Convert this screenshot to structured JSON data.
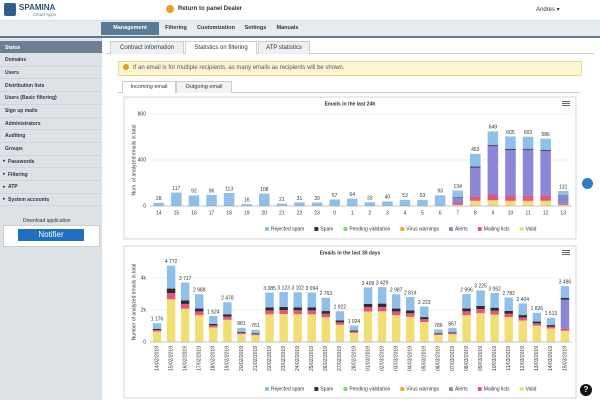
{
  "ui": {
    "logo": "SPAMINA",
    "logo_sub": "Cloud Apps",
    "return_link": "Return to panel Dealer",
    "user": "Andres ▾",
    "nav": [
      "Management",
      "Filtering",
      "Customization",
      "Settings",
      "Manuals"
    ],
    "sidebar": [
      "Status",
      "Domains",
      "Users",
      "Distribution lists",
      "Users (Basic filtering)",
      "Sign up mails",
      "Administrators",
      "Auditing",
      "Groups",
      "Passwords",
      "Filtering",
      "ATP",
      "System accounts"
    ],
    "download": "Download application",
    "notifier": "Notifier",
    "subtabs": [
      "Contract information",
      "Statistics on filtering",
      "ATP statistics"
    ],
    "notice": "If an email is for multiple recipients, as many emails as recipients will be shown.",
    "mailtabs": [
      "Incoming email",
      "Outgoing email"
    ]
  },
  "chart_data": [
    {
      "type": "bar",
      "stacked": true,
      "title": "Emails in the last 24h",
      "y_label": "Num. of analyzed emails in total",
      "categories": [
        "14",
        "15",
        "16",
        "17",
        "18",
        "19",
        "20",
        "21",
        "22",
        "23",
        "0",
        "1",
        "2",
        "3",
        "4",
        "5",
        "6",
        "7",
        "8",
        "9",
        "10",
        "11",
        "12",
        "13"
      ],
      "ylim": [
        0,
        800
      ],
      "yticks": [
        0,
        400,
        800
      ],
      "grid": true,
      "totals": [
        28,
        117,
        92,
        96,
        113,
        16,
        108,
        21,
        31,
        30,
        57,
        64,
        33,
        40,
        53,
        53,
        93,
        134,
        453,
        649,
        605,
        603,
        586,
        131
      ],
      "series": [
        {
          "name": "Rejected spam",
          "color": "#8fc0ea",
          "values": [
            28,
            117,
            92,
            96,
            113,
            16,
            108,
            21,
            31,
            30,
            57,
            64,
            33,
            40,
            53,
            53,
            93,
            60,
            110,
            120,
            110,
            105,
            100,
            40
          ]
        },
        {
          "name": "Spam",
          "color": "#2b2b2b",
          "values": [
            0,
            0,
            0,
            0,
            0,
            0,
            0,
            0,
            0,
            0,
            0,
            0,
            0,
            0,
            0,
            0,
            0,
            4,
            8,
            9,
            8,
            8,
            8,
            3
          ]
        },
        {
          "name": "Pending validation",
          "color": "#7fd47f",
          "values": [
            0,
            0,
            0,
            0,
            0,
            0,
            0,
            0,
            0,
            0,
            0,
            0,
            0,
            0,
            0,
            0,
            0,
            0,
            0,
            0,
            0,
            0,
            0,
            0
          ]
        },
        {
          "name": "Virus warnings",
          "color": "#e8ae34",
          "values": [
            0,
            0,
            0,
            0,
            0,
            0,
            0,
            0,
            0,
            0,
            0,
            0,
            0,
            0,
            0,
            0,
            0,
            0,
            0,
            0,
            0,
            0,
            0,
            0
          ]
        },
        {
          "name": "Alerts",
          "color": "#8b86d8",
          "values": [
            0,
            0,
            0,
            0,
            0,
            0,
            0,
            0,
            0,
            0,
            0,
            0,
            0,
            0,
            0,
            0,
            0,
            40,
            250,
            420,
            395,
            400,
            385,
            68
          ]
        },
        {
          "name": "Mailing lists",
          "color": "#e2577d",
          "values": [
            0,
            0,
            0,
            0,
            0,
            0,
            0,
            0,
            0,
            0,
            0,
            0,
            0,
            0,
            0,
            0,
            0,
            20,
            40,
            50,
            47,
            45,
            48,
            10
          ]
        },
        {
          "name": "Valid",
          "color": "#f2df74",
          "values": [
            0,
            0,
            0,
            0,
            0,
            0,
            0,
            0,
            0,
            0,
            0,
            0,
            0,
            0,
            0,
            0,
            0,
            10,
            45,
            50,
            45,
            45,
            45,
            10
          ]
        }
      ]
    },
    {
      "type": "bar",
      "stacked": true,
      "title": "Emails in the last 30 days",
      "y_label": "Number of analyzed emails in total",
      "categories": [
        "14/02/2019",
        "15/02/2019",
        "16/02/2019",
        "17/02/2019",
        "18/02/2019",
        "19/02/2019",
        "20/02/2019",
        "21/02/2019",
        "22/02/2019",
        "23/02/2019",
        "24/02/2019",
        "25/02/2019",
        "26/02/2019",
        "27/02/2019",
        "28/02/2019",
        "01/03/2019",
        "02/03/2019",
        "03/03/2019",
        "04/03/2019",
        "05/03/2019",
        "06/03/2019",
        "07/03/2019",
        "08/03/2019",
        "09/03/2019",
        "10/03/2019",
        "11/03/2019",
        "12/03/2019",
        "13/03/2019",
        "14/03/2019",
        "15/03/2019"
      ],
      "ylim": [
        0,
        5000
      ],
      "yticks": [
        0,
        {
          "value": 2000,
          "label": "2k"
        },
        {
          "value": 4000,
          "label": "4k"
        }
      ],
      "grid": true,
      "totals": [
        1176,
        4772,
        3717,
        2988,
        1624,
        2478,
        881,
        761,
        3085,
        3123,
        3102,
        3094,
        2763,
        1922,
        1024,
        3409,
        3429,
        2987,
        2814,
        2223,
        786,
        867,
        2996,
        3225,
        3062,
        2782,
        2404,
        1826,
        1513,
        3496
      ],
      "total_labels": [
        "1 176",
        "4 772",
        "3 717",
        "2 988",
        "1 624",
        "2 478",
        "881",
        "761",
        "3 085",
        "3 123",
        "3 102",
        "3 094",
        "2 763",
        "1 922",
        "1 024",
        "3 409",
        "3 429",
        "2 987",
        "2 814",
        "2 223",
        "786",
        "867",
        "2 996",
        "3 225",
        "3 062",
        "2 782",
        "2 404",
        "1 826",
        "1 513",
        "3 496"
      ],
      "series": [
        {
          "name": "Rejected spam",
          "color": "#8fc0ea",
          "values": [
            352,
            1432,
            1115,
            897,
            488,
            743,
            265,
            228,
            925,
            937,
            931,
            927,
            829,
            577,
            308,
            1022,
            1029,
            896,
            844,
            667,
            236,
            260,
            898,
            967,
            918,
            834,
            722,
            547,
            454,
            746
          ]
        },
        {
          "name": "Spam",
          "color": "#2b2b2b",
          "values": [
            71,
            286,
            223,
            179,
            97,
            149,
            53,
            46,
            185,
            187,
            186,
            186,
            166,
            115,
            61,
            205,
            206,
            179,
            169,
            133,
            47,
            52,
            180,
            194,
            184,
            167,
            144,
            110,
            91,
            100
          ]
        },
        {
          "name": "Pending validation",
          "color": "#7fd47f",
          "values": [
            0,
            0,
            0,
            0,
            0,
            0,
            0,
            0,
            0,
            0,
            0,
            0,
            0,
            0,
            0,
            0,
            0,
            0,
            0,
            0,
            0,
            0,
            0,
            0,
            0,
            0,
            0,
            0,
            0,
            0
          ]
        },
        {
          "name": "Virus warnings",
          "color": "#e8ae34",
          "values": [
            0,
            0,
            0,
            0,
            0,
            0,
            0,
            0,
            0,
            0,
            0,
            0,
            0,
            0,
            0,
            0,
            0,
            0,
            0,
            0,
            0,
            0,
            0,
            0,
            0,
            0,
            0,
            0,
            0,
            0
          ]
        },
        {
          "name": "Alerts",
          "color": "#8b86d8",
          "values": [
            0,
            0,
            0,
            0,
            0,
            0,
            0,
            0,
            0,
            0,
            0,
            0,
            0,
            0,
            0,
            0,
            0,
            0,
            0,
            0,
            0,
            0,
            0,
            0,
            0,
            0,
            0,
            0,
            0,
            1800
          ]
        },
        {
          "name": "Mailing lists",
          "color": "#e2577d",
          "values": [
            94,
            382,
            297,
            239,
            130,
            198,
            70,
            61,
            247,
            250,
            248,
            248,
            221,
            154,
            82,
            273,
            274,
            239,
            225,
            178,
            63,
            69,
            240,
            258,
            245,
            223,
            192,
            146,
            121,
            150
          ]
        },
        {
          "name": "Valid",
          "color": "#f2df74",
          "values": [
            659,
            2672,
            2082,
            1673,
            909,
            1388,
            493,
            426,
            1728,
            1749,
            1737,
            1733,
            1547,
            1076,
            573,
            1909,
            1920,
            1673,
            1576,
            1245,
            440,
            486,
            1678,
            1806,
            1715,
            1558,
            1346,
            1023,
            847,
            700
          ]
        }
      ]
    }
  ]
}
